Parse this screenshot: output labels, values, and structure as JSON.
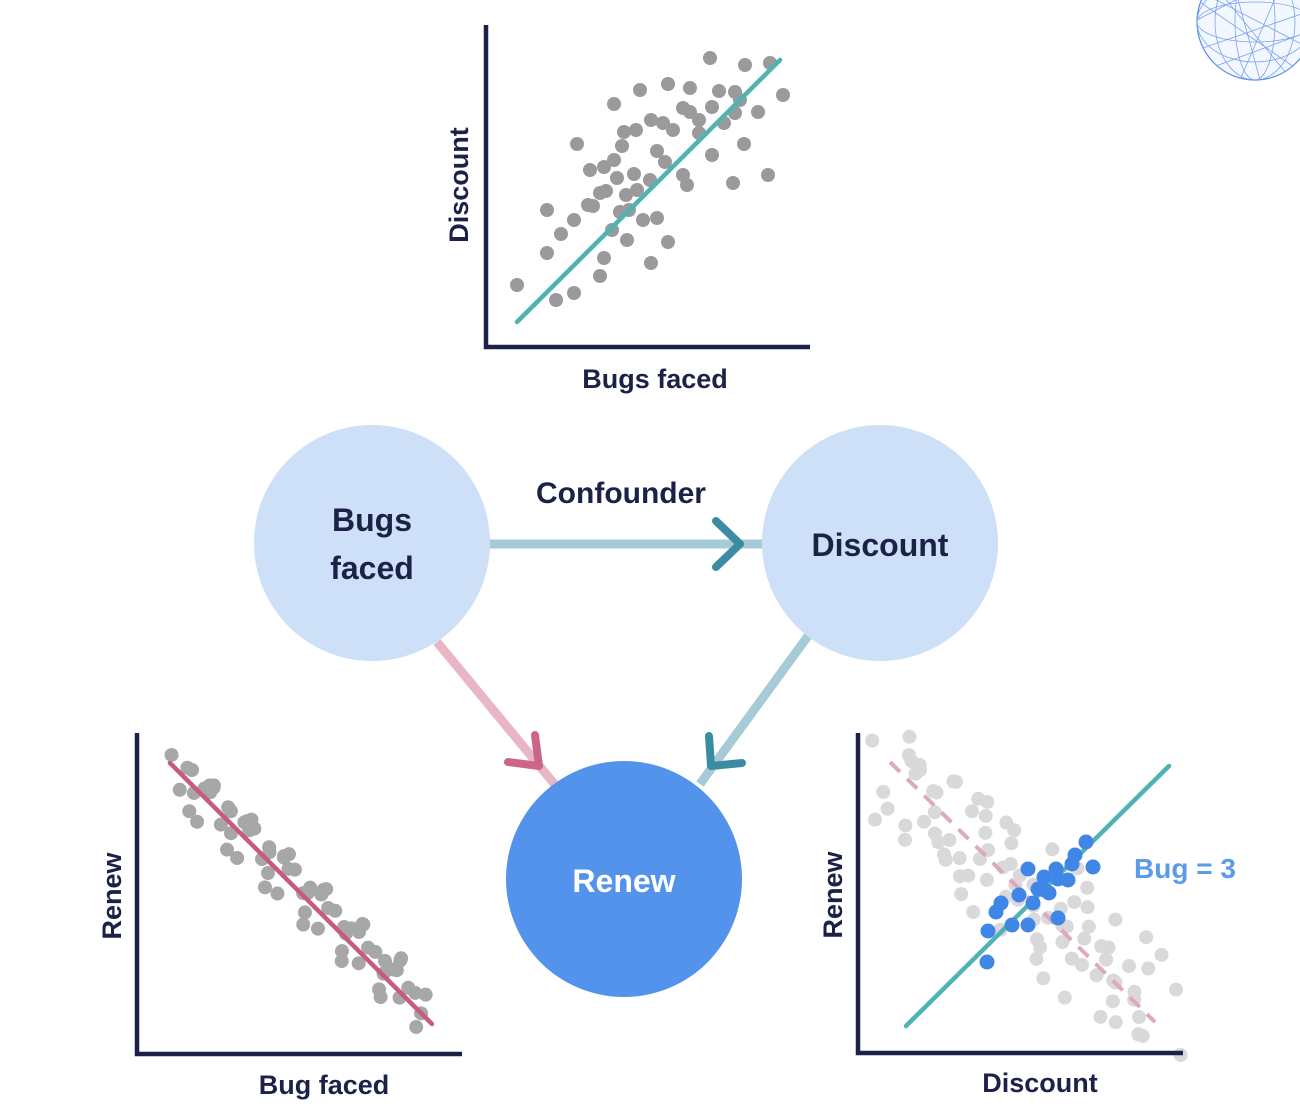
{
  "diagram": {
    "nodes": [
      {
        "id": "bugs",
        "lines": [
          "Bugs",
          "faced"
        ]
      },
      {
        "id": "discount",
        "lines": [
          "Discount"
        ]
      },
      {
        "id": "renew",
        "lines": [
          "Renew"
        ]
      }
    ],
    "edges": [
      {
        "from": "bugs",
        "to": "discount",
        "label": "Confounder",
        "color": "#a6cad6",
        "head_color": "#3a8ca3"
      },
      {
        "from": "bugs",
        "to": "renew",
        "label": "",
        "color": "#e8b6c6",
        "head_color": "#cc6687"
      },
      {
        "from": "discount",
        "to": "renew",
        "label": "",
        "color": "#a6cad6",
        "head_color": "#3a8ca3"
      }
    ],
    "colors": {
      "node_light": "#cde0f8",
      "node_dark": "#5493ec",
      "text_dark": "#1c2147",
      "point_gray": "#9a9a9d",
      "point_light": "#d9d9dc",
      "teal_line": "#4fb3b5",
      "pink_line": "#c75b7f",
      "pink_dash": "#dfa8bb",
      "blue_point": "#3f86e6"
    }
  },
  "plots": {
    "top": {
      "xlabel": "Bugs faced",
      "ylabel": "Discount"
    },
    "left": {
      "xlabel": "Bug faced",
      "ylabel": "Renew"
    },
    "right": {
      "xlabel": "Discount",
      "ylabel": "Renew",
      "annotation": "Bug = 3"
    }
  },
  "decoration": {
    "icon": "wireframe-sphere-icon"
  }
}
